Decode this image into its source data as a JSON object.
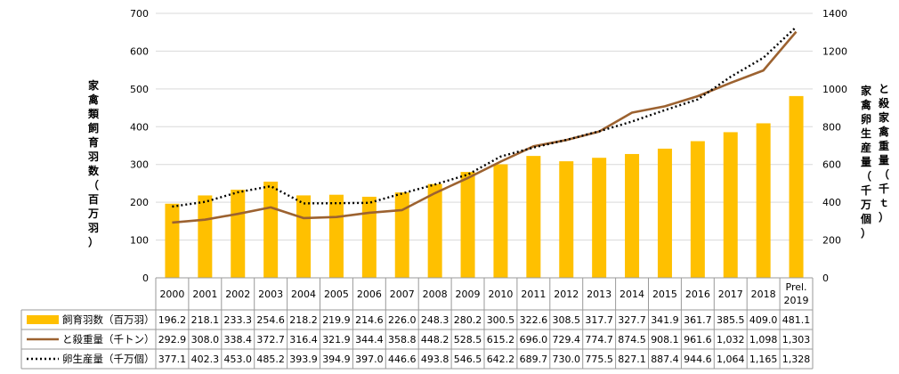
{
  "chart_data": {
    "type": "bar+line",
    "categories": [
      "2000",
      "2001",
      "2002",
      "2003",
      "2004",
      "2005",
      "2006",
      "2007",
      "2008",
      "2009",
      "2010",
      "2011",
      "2012",
      "2013",
      "2014",
      "2015",
      "2016",
      "2017",
      "2018",
      "Prel.\n2019"
    ],
    "series": [
      {
        "name": "飼育羽数（百万羽）",
        "type": "bar",
        "axis": "left",
        "color": "#FFC000",
        "values": [
          196.2,
          218.1,
          233.3,
          254.6,
          218.2,
          219.9,
          214.6,
          226.0,
          248.3,
          280.2,
          300.5,
          322.6,
          308.5,
          317.7,
          327.7,
          341.9,
          361.7,
          385.5,
          409.0,
          481.1
        ],
        "labels": [
          "196.2",
          "218.1",
          "233.3",
          "254.6",
          "218.2",
          "219.9",
          "214.6",
          "226.0",
          "248.3",
          "280.2",
          "300.5",
          "322.6",
          "308.5",
          "317.7",
          "327.7",
          "341.9",
          "361.7",
          "385.5",
          "409.0",
          "481.1"
        ]
      },
      {
        "name": "と殺重量（千トン）",
        "type": "line",
        "axis": "right",
        "color": "#9C6230",
        "dash": "solid",
        "values": [
          292.9,
          308.0,
          338.4,
          372.7,
          316.4,
          321.9,
          344.4,
          358.8,
          448.2,
          528.5,
          615.2,
          696.0,
          729.4,
          774.7,
          874.5,
          908.1,
          961.6,
          1032,
          1098,
          1303
        ],
        "labels": [
          "292.9",
          "308.0",
          "338.4",
          "372.7",
          "316.4",
          "321.9",
          "344.4",
          "358.8",
          "448.2",
          "528.5",
          "615.2",
          "696.0",
          "729.4",
          "774.7",
          "874.5",
          "908.1",
          "961.6",
          "1,032",
          "1,098",
          "1,303"
        ]
      },
      {
        "name": "卵生産量（千万個）",
        "type": "line",
        "axis": "right",
        "color": "#000000",
        "dash": "dotted",
        "values": [
          377.1,
          402.3,
          453.0,
          485.2,
          393.9,
          394.9,
          397.0,
          446.6,
          493.8,
          546.5,
          642.2,
          689.7,
          730.0,
          775.5,
          827.1,
          887.4,
          944.6,
          1064,
          1165,
          1328
        ],
        "labels": [
          "377.1",
          "402.3",
          "453.0",
          "485.2",
          "393.9",
          "394.9",
          "397.0",
          "446.6",
          "493.8",
          "546.5",
          "642.2",
          "689.7",
          "730.0",
          "775.5",
          "827.1",
          "887.4",
          "944.6",
          "1,064",
          "1,165",
          "1,328"
        ]
      }
    ],
    "y_left": {
      "label": "家禽類飼育羽数（百万羽）",
      "ylim": [
        0,
        700
      ],
      "ticks": [
        "0",
        "100",
        "200",
        "300",
        "400",
        "500",
        "600",
        "700"
      ]
    },
    "y_right": {
      "label_1": "と殺家禽重量（千ｔ）",
      "label_2": "家禽卵生産量（千万個）",
      "ylim": [
        0,
        1400
      ],
      "ticks": [
        "0",
        "200",
        "400",
        "600",
        "800",
        "1000",
        "1200",
        "1400"
      ]
    },
    "grid": true,
    "legend": "data-table-below"
  }
}
